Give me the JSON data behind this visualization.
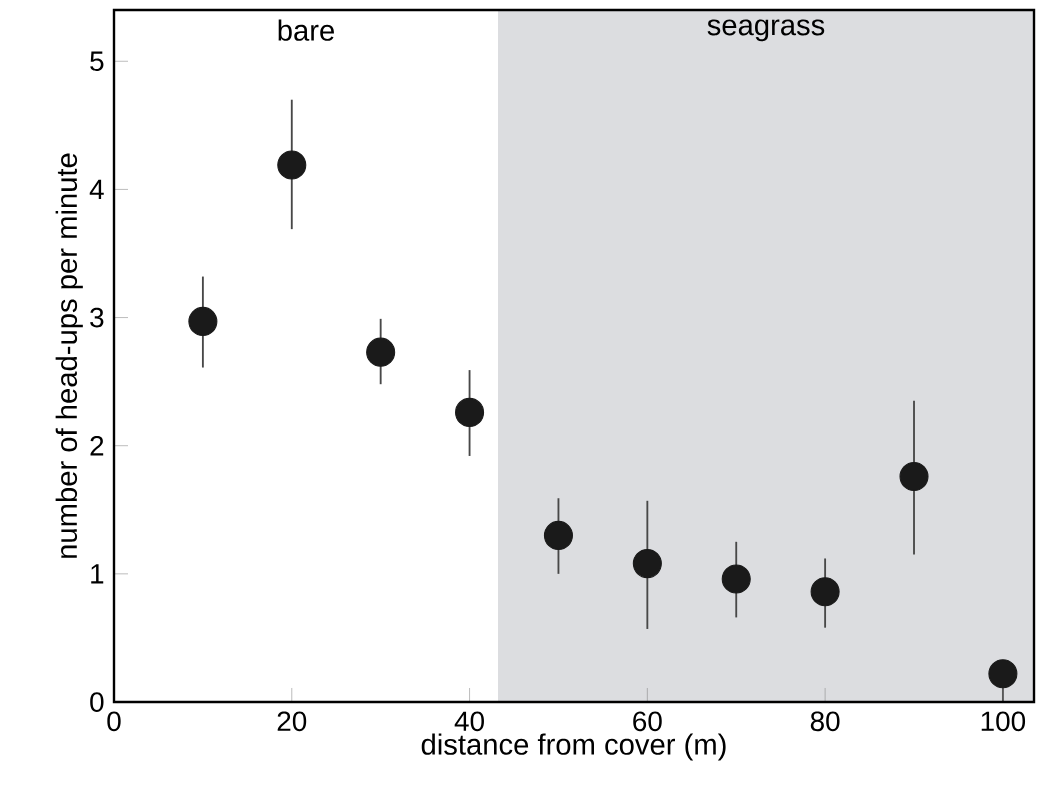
{
  "chart_data": {
    "type": "scatter",
    "xlabel": "distance from cover (m)",
    "ylabel": "number of head-ups per minute",
    "x": [
      10,
      20,
      30,
      40,
      50,
      60,
      70,
      80,
      90,
      100
    ],
    "values": [
      2.97,
      4.19,
      2.73,
      2.26,
      1.3,
      1.08,
      0.96,
      0.86,
      1.76,
      0.22
    ],
    "errors": [
      [
        2.61,
        3.32
      ],
      [
        3.69,
        4.7
      ],
      [
        2.48,
        2.99
      ],
      [
        1.92,
        2.59
      ],
      [
        1.0,
        1.59
      ],
      [
        0.57,
        1.57
      ],
      [
        0.66,
        1.25
      ],
      [
        0.58,
        1.12
      ],
      [
        1.15,
        2.35
      ],
      [
        0,
        0.22
      ]
    ],
    "color": "#1a1a1a",
    "marker": "circle",
    "xlim": [
      0,
      103.5
    ],
    "ylim": [
      0,
      5.4
    ],
    "xticks": [
      0,
      20,
      40,
      60,
      80,
      100
    ],
    "yticks": [
      0,
      1,
      2,
      3,
      4,
      5
    ],
    "bands": [
      {
        "axis": "x",
        "from": 43.2,
        "to": 103.5,
        "label": "seagrass",
        "color": "#dcdde0"
      }
    ],
    "annotations": [
      "bare"
    ]
  }
}
